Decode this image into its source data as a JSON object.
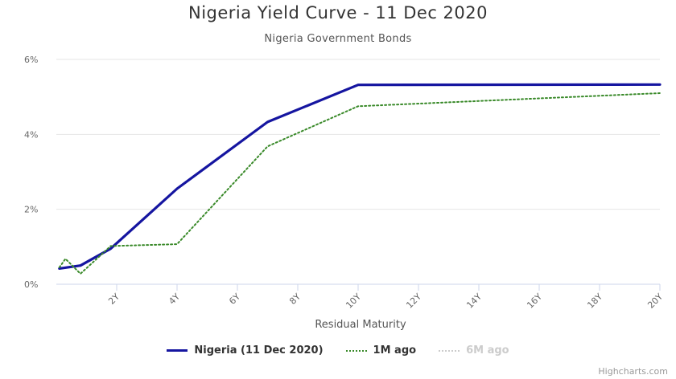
{
  "colors": {
    "nigeria": "#1515a0",
    "m1": "#3a8a2a",
    "m6": "#cccccc",
    "grid": "#e6e6e6",
    "axis": "#ccd6eb"
  },
  "chart_data": {
    "type": "line",
    "title": "Nigeria Yield Curve - 11 Dec 2020",
    "subtitle": "Nigeria Government Bonds",
    "xlabel": "Residual Maturity",
    "ylabel": "",
    "xlim": [
      0,
      20
    ],
    "ylim": [
      0,
      6
    ],
    "x_ticks": [
      "2Y",
      "4Y",
      "6Y",
      "8Y",
      "10Y",
      "12Y",
      "14Y",
      "16Y",
      "18Y",
      "20Y"
    ],
    "y_ticks": [
      "0%",
      "2%",
      "4%",
      "6%"
    ],
    "grid": true,
    "legend": "bottom",
    "series": [
      {
        "name": "Nigeria (11 Dec 2020)",
        "style": "solid",
        "visible": true,
        "x": [
          0.1,
          0.8,
          1.8,
          4.0,
          7.0,
          10.0,
          20.0
        ],
        "y": [
          0.42,
          0.5,
          0.95,
          2.55,
          4.33,
          5.32,
          5.33
        ]
      },
      {
        "name": "1M ago",
        "style": "dotted",
        "visible": true,
        "x": [
          0.1,
          0.3,
          0.8,
          1.8,
          4.0,
          7.0,
          10.0,
          20.0
        ],
        "y": [
          0.45,
          0.68,
          0.28,
          1.02,
          1.07,
          3.68,
          4.75,
          5.1
        ]
      },
      {
        "name": "6M ago",
        "style": "dotted",
        "visible": false,
        "x": [],
        "y": []
      }
    ]
  },
  "credit": "Highcharts.com"
}
